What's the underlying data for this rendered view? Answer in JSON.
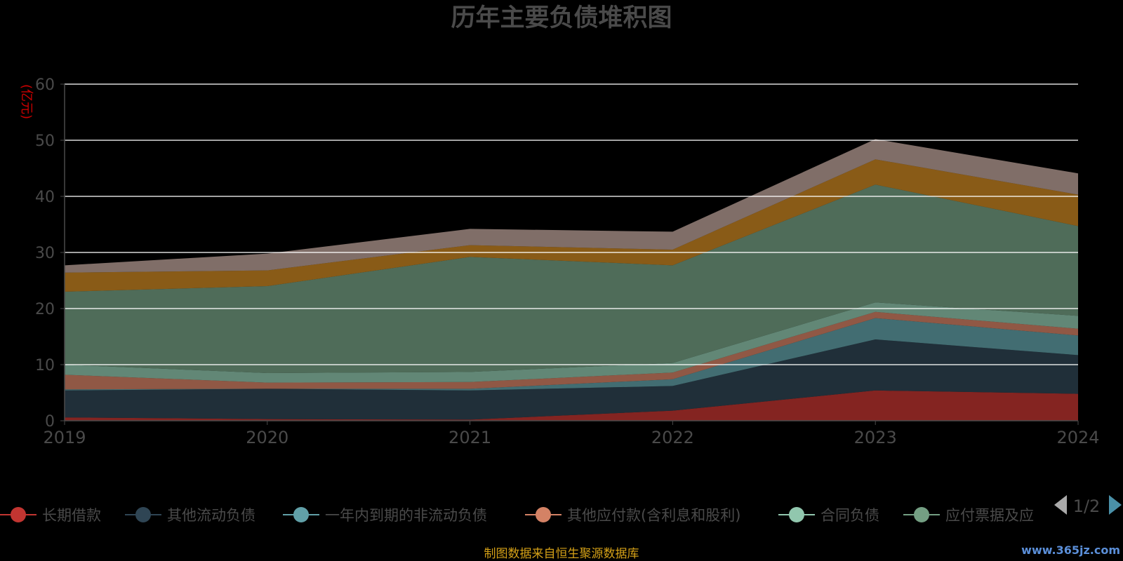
{
  "chart_data": {
    "type": "area",
    "stacked": true,
    "title": "历年主要负债堆积图",
    "unit_label": "(亿元)",
    "categories": [
      "2019",
      "2020",
      "2021",
      "2022",
      "2023",
      "2024"
    ],
    "ylim": [
      0,
      60
    ],
    "y_ticks": [
      "0",
      "10",
      "20",
      "30",
      "40",
      "50",
      "60"
    ],
    "grid": true,
    "legend_position": "bottom",
    "legend_page": "1/2",
    "series": [
      {
        "name": "长期借款",
        "color": "#c23531",
        "values": [
          0.6,
          0.3,
          0.2,
          1.8,
          5.4,
          4.8
        ]
      },
      {
        "name": "其他流动负债",
        "color": "#2f4554",
        "values": [
          4.8,
          5.4,
          5.2,
          4.4,
          9.1,
          6.9
        ]
      },
      {
        "name": "一年内到期的非流动负债",
        "color": "#61a0a8",
        "values": [
          0.2,
          0.0,
          0.3,
          1.2,
          3.8,
          3.5
        ]
      },
      {
        "name": "其他应付款(含利息和股利)",
        "color": "#d48265",
        "values": [
          2.6,
          1.1,
          1.2,
          1.2,
          1.1,
          1.2
        ]
      },
      {
        "name": "合同负债",
        "color": "#91c7ae",
        "values": [
          1.8,
          1.7,
          1.8,
          1.7,
          1.7,
          2.3
        ]
      },
      {
        "name": "应付票据及应付账款",
        "color": "#749f83",
        "values": [
          13.0,
          15.5,
          20.5,
          17.4,
          21.0,
          16.0
        ]
      },
      {
        "name": "",
        "color": "#ca8622",
        "values": [
          3.4,
          2.8,
          2.1,
          2.8,
          4.5,
          5.6
        ]
      },
      {
        "name": "",
        "color": "#bda29a",
        "values": [
          1.3,
          3.0,
          2.9,
          3.2,
          3.6,
          3.8
        ]
      }
    ]
  },
  "legend_visible": [
    {
      "label": "长期借款",
      "color": "#c23531"
    },
    {
      "label": "其他流动负债",
      "color": "#2f4554"
    },
    {
      "label": "一年内到期的非流动负债",
      "color": "#61a0a8"
    },
    {
      "label": "其他应付款(含利息和股利)",
      "color": "#d48265"
    },
    {
      "label": "合同负债",
      "color": "#91c7ae"
    },
    {
      "label": "应付票据及应",
      "color": "#749f83"
    }
  ],
  "footer": {
    "source": "制图数据来自恒生聚源数据库",
    "watermark": "www.365jz.com"
  },
  "colors": {
    "background": "#000000",
    "axis_text": "#4a4a4a",
    "unit_label": "#cc0000",
    "footer_text": "#d4a017",
    "watermark_text": "#5b8fd9",
    "gridline": "#ffffff"
  }
}
